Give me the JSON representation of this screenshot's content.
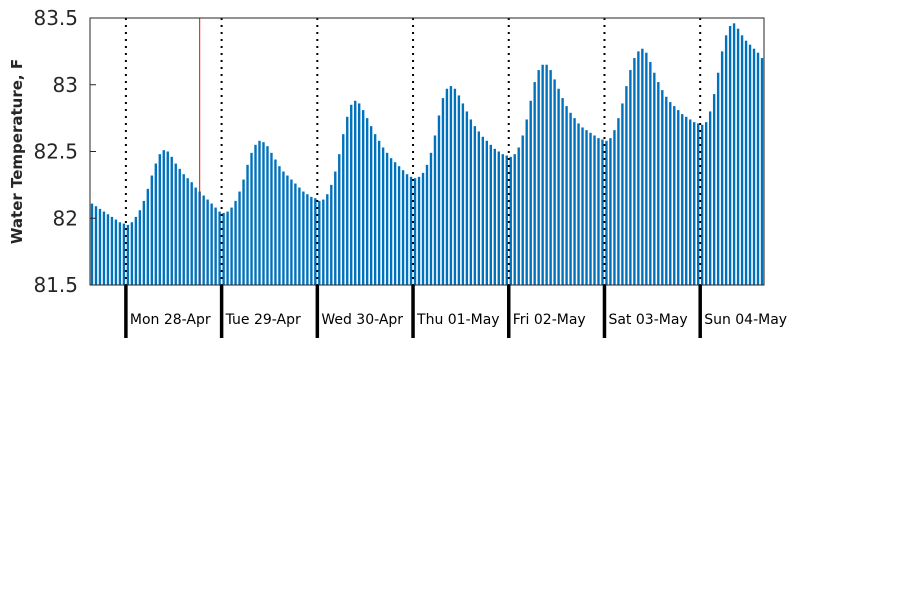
{
  "chart_data": {
    "type": "bar",
    "ylabel": "Water Temperature, F",
    "ylim": [
      81.5,
      83.5
    ],
    "yticks": [
      "81.5",
      "82",
      "82.5",
      "83",
      "83.5"
    ],
    "day_labels": [
      "Mon 28-Apr",
      "Tue 29-Apr",
      "Wed 30-Apr",
      "Thu 01-May",
      "Fri 02-May",
      "Sat 03-May",
      "Sun 04-May"
    ],
    "hours_per_day": 24,
    "start_hour_offset": -9,
    "bar_color": "#0072bd",
    "marker_color": "#ff0000",
    "current_time_hour": 18.5,
    "grid": "dotted vertical lines at day boundaries",
    "values": [
      82.11,
      82.09,
      82.07,
      82.05,
      82.03,
      82.01,
      81.99,
      81.97,
      81.96,
      81.95,
      81.97,
      82.01,
      82.06,
      82.13,
      82.22,
      82.32,
      82.41,
      82.48,
      82.51,
      82.5,
      82.46,
      82.41,
      82.37,
      82.33,
      82.3,
      82.27,
      82.23,
      82.2,
      82.17,
      82.14,
      82.11,
      82.08,
      82.05,
      82.04,
      82.05,
      82.08,
      82.13,
      82.2,
      82.29,
      82.4,
      82.49,
      82.55,
      82.58,
      82.57,
      82.54,
      82.49,
      82.44,
      82.39,
      82.35,
      82.32,
      82.29,
      82.26,
      82.23,
      82.2,
      82.18,
      82.16,
      82.15,
      82.13,
      82.14,
      82.18,
      82.25,
      82.35,
      82.48,
      82.63,
      82.76,
      82.85,
      82.88,
      82.86,
      82.81,
      82.75,
      82.69,
      82.63,
      82.58,
      82.53,
      82.49,
      82.45,
      82.42,
      82.39,
      82.36,
      82.33,
      82.31,
      82.3,
      82.31,
      82.34,
      82.4,
      82.49,
      82.62,
      82.77,
      82.9,
      82.97,
      82.99,
      82.97,
      82.92,
      82.86,
      82.8,
      82.74,
      82.69,
      82.65,
      82.61,
      82.58,
      82.55,
      82.52,
      82.5,
      82.48,
      82.47,
      82.46,
      82.48,
      82.53,
      82.62,
      82.74,
      82.88,
      83.02,
      83.11,
      83.15,
      83.15,
      83.11,
      83.04,
      82.97,
      82.9,
      82.84,
      82.79,
      82.75,
      82.71,
      82.68,
      82.66,
      82.64,
      82.62,
      82.6,
      82.59,
      82.58,
      82.6,
      82.66,
      82.75,
      82.86,
      82.99,
      83.11,
      83.2,
      83.25,
      83.27,
      83.24,
      83.17,
      83.09,
      83.02,
      82.96,
      82.91,
      82.87,
      82.84,
      82.81,
      82.78,
      82.76,
      82.74,
      82.72,
      82.71,
      82.7,
      82.72,
      82.8,
      82.93,
      83.09,
      83.25,
      83.37,
      83.44,
      83.46,
      83.42,
      83.37,
      83.33,
      83.3,
      83.27,
      83.24,
      83.2
    ]
  }
}
